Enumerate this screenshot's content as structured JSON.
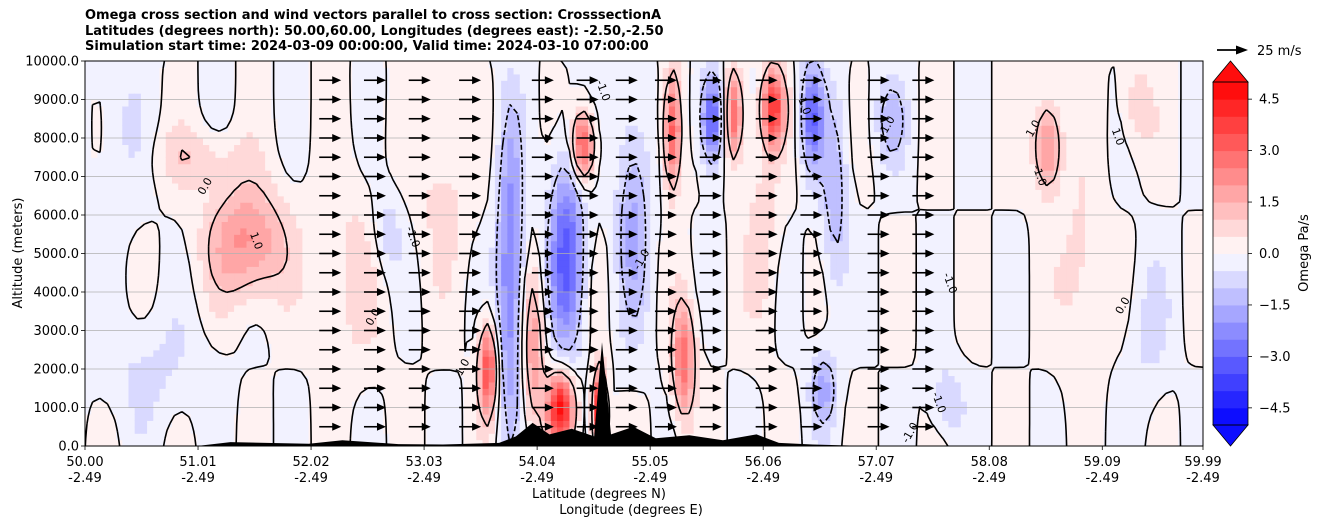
{
  "chart_data": {
    "type": "heatmap",
    "title_lines": [
      "Omega cross section and wind vectors parallel to cross section: CrosssectionA",
      "Latitudes (degrees north): 50.00,60.00, Longitudes (degrees east): -2.50,-2.50",
      "Simulation start time: 2024-03-09 00:00:00, Valid time: 2024-03-10 07:00:00"
    ],
    "xlabel_line1": "Latitude (degrees N)",
    "xlabel_line2": "Longitude (degrees E)",
    "ylabel": "Altitude (meters)",
    "xlim": [
      50.0,
      59.99
    ],
    "ylim": [
      0,
      10000
    ],
    "x_ticks": [
      {
        "lat": "50.00",
        "lon": "-2.49",
        "value": 50.0
      },
      {
        "lat": "51.01",
        "lon": "-2.49",
        "value": 51.01
      },
      {
        "lat": "52.02",
        "lon": "-2.49",
        "value": 52.02
      },
      {
        "lat": "53.03",
        "lon": "-2.49",
        "value": 53.03
      },
      {
        "lat": "54.04",
        "lon": "-2.49",
        "value": 54.04
      },
      {
        "lat": "55.05",
        "lon": "-2.49",
        "value": 55.05
      },
      {
        "lat": "56.06",
        "lon": "-2.49",
        "value": 56.06
      },
      {
        "lat": "57.07",
        "lon": "-2.49",
        "value": 57.07
      },
      {
        "lat": "58.08",
        "lon": "-2.49",
        "value": 58.08
      },
      {
        "lat": "59.09",
        "lon": "-2.49",
        "value": 59.09
      },
      {
        "lat": "59.99",
        "lon": "-2.49",
        "value": 59.99
      }
    ],
    "y_ticks": [
      {
        "label": "0.0",
        "value": 0
      },
      {
        "label": "1000.0",
        "value": 1000
      },
      {
        "label": "2000.0",
        "value": 2000
      },
      {
        "label": "3000.0",
        "value": 3000
      },
      {
        "label": "4000.0",
        "value": 4000
      },
      {
        "label": "5000.0",
        "value": 5000
      },
      {
        "label": "6000.0",
        "value": 6000
      },
      {
        "label": "7000.0",
        "value": 7000
      },
      {
        "label": "8000.0",
        "value": 8000
      },
      {
        "label": "9000.0",
        "value": 9000
      },
      {
        "label": "10000.0",
        "value": 10000
      }
    ],
    "grid": "horizontal",
    "colorbar": {
      "label": "Omega Pa/s",
      "range": [
        -5.0,
        5.0
      ],
      "levels": 20,
      "extend": "both",
      "colormap": "bwr",
      "ticks": [
        {
          "label": "4.5",
          "value": 4.5
        },
        {
          "label": "3.0",
          "value": 3.0
        },
        {
          "label": "1.5",
          "value": 1.5
        },
        {
          "label": "0.0",
          "value": 0.0
        },
        {
          "label": "−1.5",
          "value": -1.5
        },
        {
          "label": "−3.0",
          "value": -3.0
        },
        {
          "label": "−4.5",
          "value": -4.5
        }
      ]
    },
    "quiver_key": {
      "label": "25 m/s",
      "speed": 25
    },
    "contour_levels": [
      -1.0,
      0.0,
      1.0
    ],
    "contour_labels": [
      {
        "text": "0.0",
        "lat": 51.1,
        "alt": 6700
      },
      {
        "text": "1.0",
        "lat": 51.5,
        "alt": 5300
      },
      {
        "text": "0.0",
        "lat": 52.6,
        "alt": 3300
      },
      {
        "text": "-1.0",
        "lat": 52.9,
        "alt": 5400
      },
      {
        "text": "1.0",
        "lat": 53.4,
        "alt": 2000
      },
      {
        "text": "-1.0",
        "lat": 54.6,
        "alt": 9200
      },
      {
        "text": "-1.0",
        "lat": 55.0,
        "alt": 4800
      },
      {
        "text": "1.0",
        "lat": 56.4,
        "alt": 8800
      },
      {
        "text": "1.0",
        "lat": 57.2,
        "alt": 8300
      },
      {
        "text": "-1.0",
        "lat": 57.7,
        "alt": 4200
      },
      {
        "text": "1.0",
        "lat": 58.5,
        "alt": 8200
      },
      {
        "text": "-1.0",
        "lat": 58.5,
        "alt": 7000
      },
      {
        "text": "0.0",
        "lat": 59.3,
        "alt": 3600
      },
      {
        "text": "-1.0",
        "lat": 57.6,
        "alt": 1100
      },
      {
        "text": "-1.0",
        "lat": 57.4,
        "alt": 300
      },
      {
        "text": "1.0",
        "lat": 59.2,
        "alt": 8000
      }
    ],
    "omega_field": [
      {
        "lat": 51.45,
        "alt": 5300,
        "w_lat": 0.35,
        "w_alt": 1500,
        "value": 2.2
      },
      {
        "lat": 51.0,
        "alt": 7500,
        "w_lat": 0.4,
        "w_alt": 800,
        "value": 0.8
      },
      {
        "lat": 50.6,
        "alt": 2000,
        "w_lat": 0.5,
        "w_alt": 1500,
        "value": -0.6
      },
      {
        "lat": 52.4,
        "alt": 4500,
        "w_lat": 0.3,
        "w_alt": 2500,
        "value": 0.7
      },
      {
        "lat": 52.7,
        "alt": 5500,
        "w_lat": 0.15,
        "w_alt": 1200,
        "value": -0.9
      },
      {
        "lat": 53.2,
        "alt": 6800,
        "w_lat": 0.25,
        "w_alt": 2500,
        "value": 0.7
      },
      {
        "lat": 53.6,
        "alt": 2000,
        "w_lat": 0.08,
        "w_alt": 1200,
        "value": 3.6
      },
      {
        "lat": 53.8,
        "alt": 4500,
        "w_lat": 0.12,
        "w_alt": 4000,
        "value": -2.6
      },
      {
        "lat": 54.0,
        "alt": 2500,
        "w_lat": 0.1,
        "w_alt": 2000,
        "value": 2.0
      },
      {
        "lat": 54.25,
        "alt": 1000,
        "w_lat": 0.12,
        "w_alt": 900,
        "value": 4.6
      },
      {
        "lat": 54.3,
        "alt": 5000,
        "w_lat": 0.15,
        "w_alt": 2500,
        "value": -3.2
      },
      {
        "lat": 54.45,
        "alt": 7800,
        "w_lat": 0.1,
        "w_alt": 900,
        "value": 3.6
      },
      {
        "lat": 54.6,
        "alt": 800,
        "w_lat": 0.06,
        "w_alt": 1100,
        "value": 5.0
      },
      {
        "lat": 54.9,
        "alt": 6000,
        "w_lat": 0.15,
        "w_alt": 3000,
        "value": -1.6
      },
      {
        "lat": 55.25,
        "alt": 8200,
        "w_lat": 0.08,
        "w_alt": 1500,
        "value": 3.4
      },
      {
        "lat": 55.35,
        "alt": 2200,
        "w_lat": 0.1,
        "w_alt": 1500,
        "value": 2.8
      },
      {
        "lat": 55.6,
        "alt": 8500,
        "w_lat": 0.1,
        "w_alt": 1200,
        "value": -3.4
      },
      {
        "lat": 55.8,
        "alt": 8600,
        "w_lat": 0.08,
        "w_alt": 1200,
        "value": 3.0
      },
      {
        "lat": 56.15,
        "alt": 8800,
        "w_lat": 0.1,
        "w_alt": 1000,
        "value": 3.8
      },
      {
        "lat": 56.05,
        "alt": 5500,
        "w_lat": 0.15,
        "w_alt": 2500,
        "value": 0.8
      },
      {
        "lat": 56.5,
        "alt": 8600,
        "w_lat": 0.1,
        "w_alt": 1400,
        "value": -2.8
      },
      {
        "lat": 56.7,
        "alt": 6500,
        "w_lat": 0.12,
        "w_alt": 2500,
        "value": -1.4
      },
      {
        "lat": 56.6,
        "alt": 1500,
        "w_lat": 0.12,
        "w_alt": 1000,
        "value": -1.6
      },
      {
        "lat": 57.2,
        "alt": 8500,
        "w_lat": 0.15,
        "w_alt": 1200,
        "value": -1.2
      },
      {
        "lat": 57.7,
        "alt": 1200,
        "w_lat": 0.15,
        "w_alt": 900,
        "value": -1.0
      },
      {
        "lat": 58.6,
        "alt": 7800,
        "w_lat": 0.12,
        "w_alt": 1200,
        "value": 2.4
      },
      {
        "lat": 58.9,
        "alt": 4500,
        "w_lat": 0.2,
        "w_alt": 2500,
        "value": 0.8
      },
      {
        "lat": 59.4,
        "alt": 8800,
        "w_lat": 0.15,
        "w_alt": 1200,
        "value": 0.9
      },
      {
        "lat": 59.5,
        "alt": 3000,
        "w_lat": 0.2,
        "w_alt": 2000,
        "value": -0.6
      },
      {
        "lat": 50.3,
        "alt": 8000,
        "w_lat": 0.25,
        "w_alt": 2500,
        "value": -0.5
      }
    ],
    "wind_vector_columns_lat": [
      52.2,
      52.6,
      53.0,
      53.45,
      54.1,
      54.5,
      54.85,
      55.2,
      55.6,
      56.1,
      56.5,
      57.1,
      57.5
    ],
    "wind_vector_levels_alt": [
      500,
      1000,
      1500,
      2000,
      2500,
      3000,
      3500,
      4000,
      4500,
      5000,
      5500,
      6000,
      6500,
      7000,
      7500,
      8000,
      8500,
      9000,
      9500
    ],
    "terrain": [
      {
        "lat": 50.0,
        "alt": 0
      },
      {
        "lat": 51.0,
        "alt": 0
      },
      {
        "lat": 51.3,
        "alt": 100
      },
      {
        "lat": 52.0,
        "alt": 60
      },
      {
        "lat": 52.3,
        "alt": 150
      },
      {
        "lat": 52.8,
        "alt": 50
      },
      {
        "lat": 53.2,
        "alt": 40
      },
      {
        "lat": 53.7,
        "alt": 80
      },
      {
        "lat": 53.85,
        "alt": 250
      },
      {
        "lat": 54.0,
        "alt": 600
      },
      {
        "lat": 54.15,
        "alt": 300
      },
      {
        "lat": 54.35,
        "alt": 450
      },
      {
        "lat": 54.55,
        "alt": 250
      },
      {
        "lat": 54.62,
        "alt": 2700
      },
      {
        "lat": 54.7,
        "alt": 300
      },
      {
        "lat": 54.9,
        "alt": 500
      },
      {
        "lat": 55.1,
        "alt": 200
      },
      {
        "lat": 55.4,
        "alt": 280
      },
      {
        "lat": 55.7,
        "alt": 150
      },
      {
        "lat": 56.0,
        "alt": 300
      },
      {
        "lat": 56.2,
        "alt": 80
      },
      {
        "lat": 56.5,
        "alt": 40
      },
      {
        "lat": 57.0,
        "alt": 0
      },
      {
        "lat": 59.99,
        "alt": 0
      }
    ]
  }
}
